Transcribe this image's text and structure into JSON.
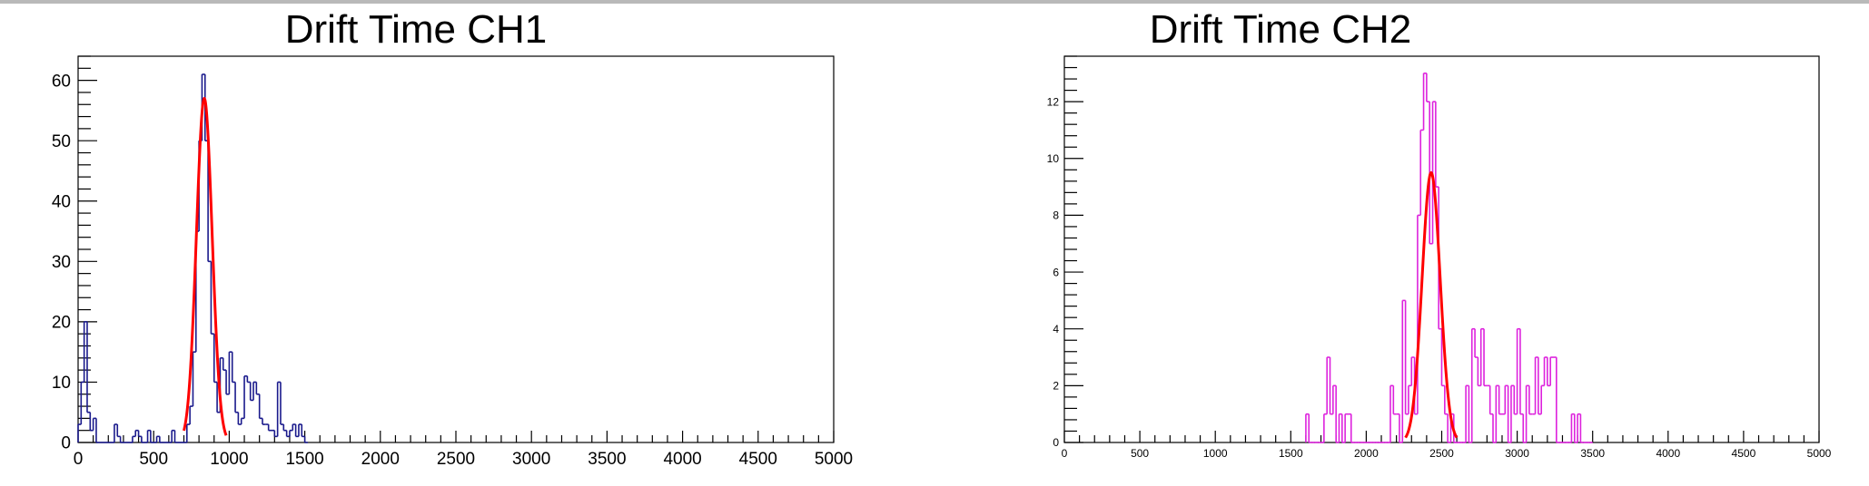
{
  "chart_data": [
    {
      "type": "bar",
      "title": "Drift Time CH1",
      "xlabel": "",
      "ylabel": "",
      "xlim": [
        0,
        5000
      ],
      "ylim": [
        0,
        64
      ],
      "x_ticks": [
        "0",
        "500",
        "1000",
        "1500",
        "2000",
        "2500",
        "3000",
        "3500",
        "4000",
        "4500",
        "5000"
      ],
      "y_ticks": [
        "0",
        "10",
        "20",
        "30",
        "40",
        "50",
        "60"
      ],
      "bin_width": 20,
      "series": [
        {
          "color": "#1a1a8c",
          "style": "histogram-step",
          "x": [
            0,
            20,
            40,
            60,
            80,
            100,
            120,
            140,
            160,
            180,
            200,
            220,
            240,
            260,
            280,
            300,
            320,
            340,
            360,
            380,
            400,
            420,
            440,
            460,
            480,
            500,
            520,
            540,
            560,
            580,
            600,
            620,
            640,
            660,
            680,
            700,
            720,
            740,
            760,
            780,
            800,
            820,
            840,
            860,
            880,
            900,
            920,
            940,
            960,
            980,
            1000,
            1020,
            1040,
            1060,
            1080,
            1100,
            1120,
            1140,
            1160,
            1180,
            1200,
            1220,
            1240,
            1260,
            1280,
            1300,
            1320,
            1340,
            1360,
            1380,
            1400,
            1420,
            1440,
            1460,
            1480,
            1500
          ],
          "values": [
            3,
            10,
            20,
            5,
            2,
            4,
            0,
            0,
            0,
            0,
            0,
            0,
            3,
            1,
            0,
            0,
            0,
            0,
            1,
            2,
            1,
            0,
            0,
            2,
            0,
            0,
            1,
            0,
            0,
            0,
            0,
            2,
            0,
            0,
            0,
            0,
            3,
            6,
            15,
            35,
            50,
            61,
            50,
            30,
            18,
            10,
            5,
            14,
            12,
            8,
            15,
            10,
            5,
            3,
            4,
            11,
            10,
            7,
            10,
            8,
            4,
            3,
            3,
            2,
            2,
            1,
            10,
            3,
            2,
            1,
            2,
            3,
            1,
            3,
            1,
            0
          ]
        },
        {
          "name": "",
          "color": "#ff0000",
          "style": "gaussian-fit",
          "amplitude": 57,
          "mean": 835,
          "sigma": 52,
          "range": [
            700,
            980
          ]
        }
      ]
    },
    {
      "type": "bar",
      "title": "Drift Time CH2",
      "xlabel": "",
      "ylabel": "",
      "xlim": [
        0,
        5000
      ],
      "ylim": [
        0,
        13.6
      ],
      "x_ticks": [
        "0",
        "500",
        "1000",
        "1500",
        "2000",
        "2500",
        "3000",
        "3500",
        "4000",
        "4500",
        "5000"
      ],
      "y_ticks": [
        "0",
        "2",
        "4",
        "6",
        "8",
        "10",
        "12"
      ],
      "bin_width": 20,
      "series": [
        {
          "color": "#dd22dd",
          "style": "histogram-step",
          "x": [
            1600,
            1620,
            1640,
            1660,
            1680,
            1700,
            1720,
            1740,
            1760,
            1780,
            1800,
            1820,
            1840,
            1860,
            1880,
            1900,
            1920,
            1940,
            1960,
            1980,
            2000,
            2020,
            2040,
            2060,
            2080,
            2100,
            2120,
            2140,
            2160,
            2180,
            2200,
            2220,
            2240,
            2260,
            2280,
            2300,
            2320,
            2340,
            2360,
            2380,
            2400,
            2420,
            2440,
            2460,
            2480,
            2500,
            2520,
            2540,
            2560,
            2580,
            2600,
            2620,
            2640,
            2660,
            2680,
            2700,
            2720,
            2740,
            2760,
            2780,
            2800,
            2820,
            2840,
            2860,
            2880,
            2900,
            2920,
            2940,
            2960,
            2980,
            3000,
            3020,
            3040,
            3060,
            3080,
            3100,
            3120,
            3140,
            3160,
            3180,
            3200,
            3220,
            3240,
            3260,
            3280,
            3300,
            3320,
            3340,
            3360,
            3380,
            3400,
            3420,
            3440,
            3460,
            3480
          ],
          "values": [
            1,
            0,
            0,
            0,
            0,
            0,
            1,
            3,
            1,
            2,
            0,
            1,
            0,
            1,
            1,
            0,
            0,
            0,
            0,
            0,
            0,
            0,
            0,
            0,
            0,
            0,
            0,
            0,
            2,
            1,
            1,
            0,
            5,
            1,
            2,
            3,
            1,
            8,
            11,
            13,
            12,
            7,
            12,
            9,
            4,
            2,
            1,
            0,
            1,
            0,
            0,
            0,
            0,
            2,
            0,
            4,
            3,
            2,
            4,
            2,
            2,
            1,
            0,
            2,
            1,
            1,
            2,
            0,
            2,
            1,
            4,
            1,
            0,
            2,
            1,
            1,
            3,
            1,
            2,
            3,
            2,
            3,
            3,
            0,
            0,
            0,
            0,
            0,
            1,
            0,
            1,
            0,
            0,
            0,
            0
          ]
        },
        {
          "name": "",
          "color": "#ff0000",
          "style": "gaussian-fit",
          "amplitude": 9.5,
          "mean": 2430,
          "sigma": 60,
          "range": [
            2260,
            2600
          ]
        }
      ]
    }
  ]
}
